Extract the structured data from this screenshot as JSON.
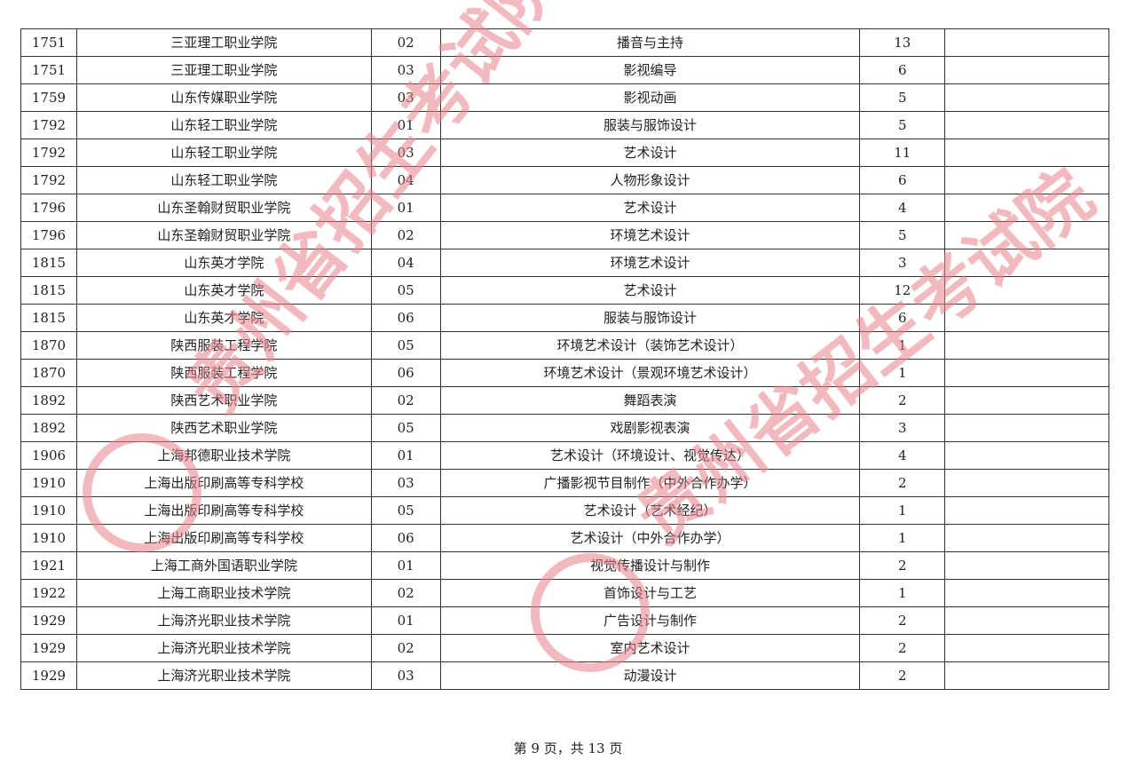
{
  "watermark": {
    "text": "贵州省招生考试院",
    "color": "#e8828a"
  },
  "rows": [
    [
      "1751",
      "三亚理工职业学院",
      "02",
      "播音与主持",
      "13",
      ""
    ],
    [
      "1751",
      "三亚理工职业学院",
      "03",
      "影视编导",
      "6",
      ""
    ],
    [
      "1759",
      "山东传媒职业学院",
      "03",
      "影视动画",
      "5",
      ""
    ],
    [
      "1792",
      "山东轻工职业学院",
      "01",
      "服装与服饰设计",
      "5",
      ""
    ],
    [
      "1792",
      "山东轻工职业学院",
      "03",
      "艺术设计",
      "11",
      ""
    ],
    [
      "1792",
      "山东轻工职业学院",
      "04",
      "人物形象设计",
      "6",
      ""
    ],
    [
      "1796",
      "山东圣翰财贸职业学院",
      "01",
      "艺术设计",
      "4",
      ""
    ],
    [
      "1796",
      "山东圣翰财贸职业学院",
      "02",
      "环境艺术设计",
      "5",
      ""
    ],
    [
      "1815",
      "山东英才学院",
      "04",
      "环境艺术设计",
      "3",
      ""
    ],
    [
      "1815",
      "山东英才学院",
      "05",
      "艺术设计",
      "12",
      ""
    ],
    [
      "1815",
      "山东英才学院",
      "06",
      "服装与服饰设计",
      "6",
      ""
    ],
    [
      "1870",
      "陕西服装工程学院",
      "05",
      "环境艺术设计（装饰艺术设计）",
      "1",
      ""
    ],
    [
      "1870",
      "陕西服装工程学院",
      "06",
      "环境艺术设计（景观环境艺术设计）",
      "1",
      ""
    ],
    [
      "1892",
      "陕西艺术职业学院",
      "02",
      "舞蹈表演",
      "2",
      ""
    ],
    [
      "1892",
      "陕西艺术职业学院",
      "05",
      "戏剧影视表演",
      "3",
      ""
    ],
    [
      "1906",
      "上海邦德职业技术学院",
      "01",
      "艺术设计（环境设计、视觉传达）",
      "4",
      ""
    ],
    [
      "1910",
      "上海出版印刷高等专科学校",
      "03",
      "广播影视节目制作（中外合作办学）",
      "2",
      ""
    ],
    [
      "1910",
      "上海出版印刷高等专科学校",
      "05",
      "艺术设计（艺术经纪）",
      "1",
      ""
    ],
    [
      "1910",
      "上海出版印刷高等专科学校",
      "06",
      "艺术设计（中外合作办学）",
      "1",
      ""
    ],
    [
      "1921",
      "上海工商外国语职业学院",
      "01",
      "视觉传播设计与制作",
      "2",
      ""
    ],
    [
      "1922",
      "上海工商职业技术学院",
      "02",
      "首饰设计与工艺",
      "1",
      ""
    ],
    [
      "1929",
      "上海济光职业技术学院",
      "01",
      "广告设计与制作",
      "2",
      ""
    ],
    [
      "1929",
      "上海济光职业技术学院",
      "02",
      "室内艺术设计",
      "2",
      ""
    ],
    [
      "1929",
      "上海济光职业技术学院",
      "03",
      "动漫设计",
      "2",
      ""
    ]
  ],
  "footer": "第 9 页，共 13 页"
}
